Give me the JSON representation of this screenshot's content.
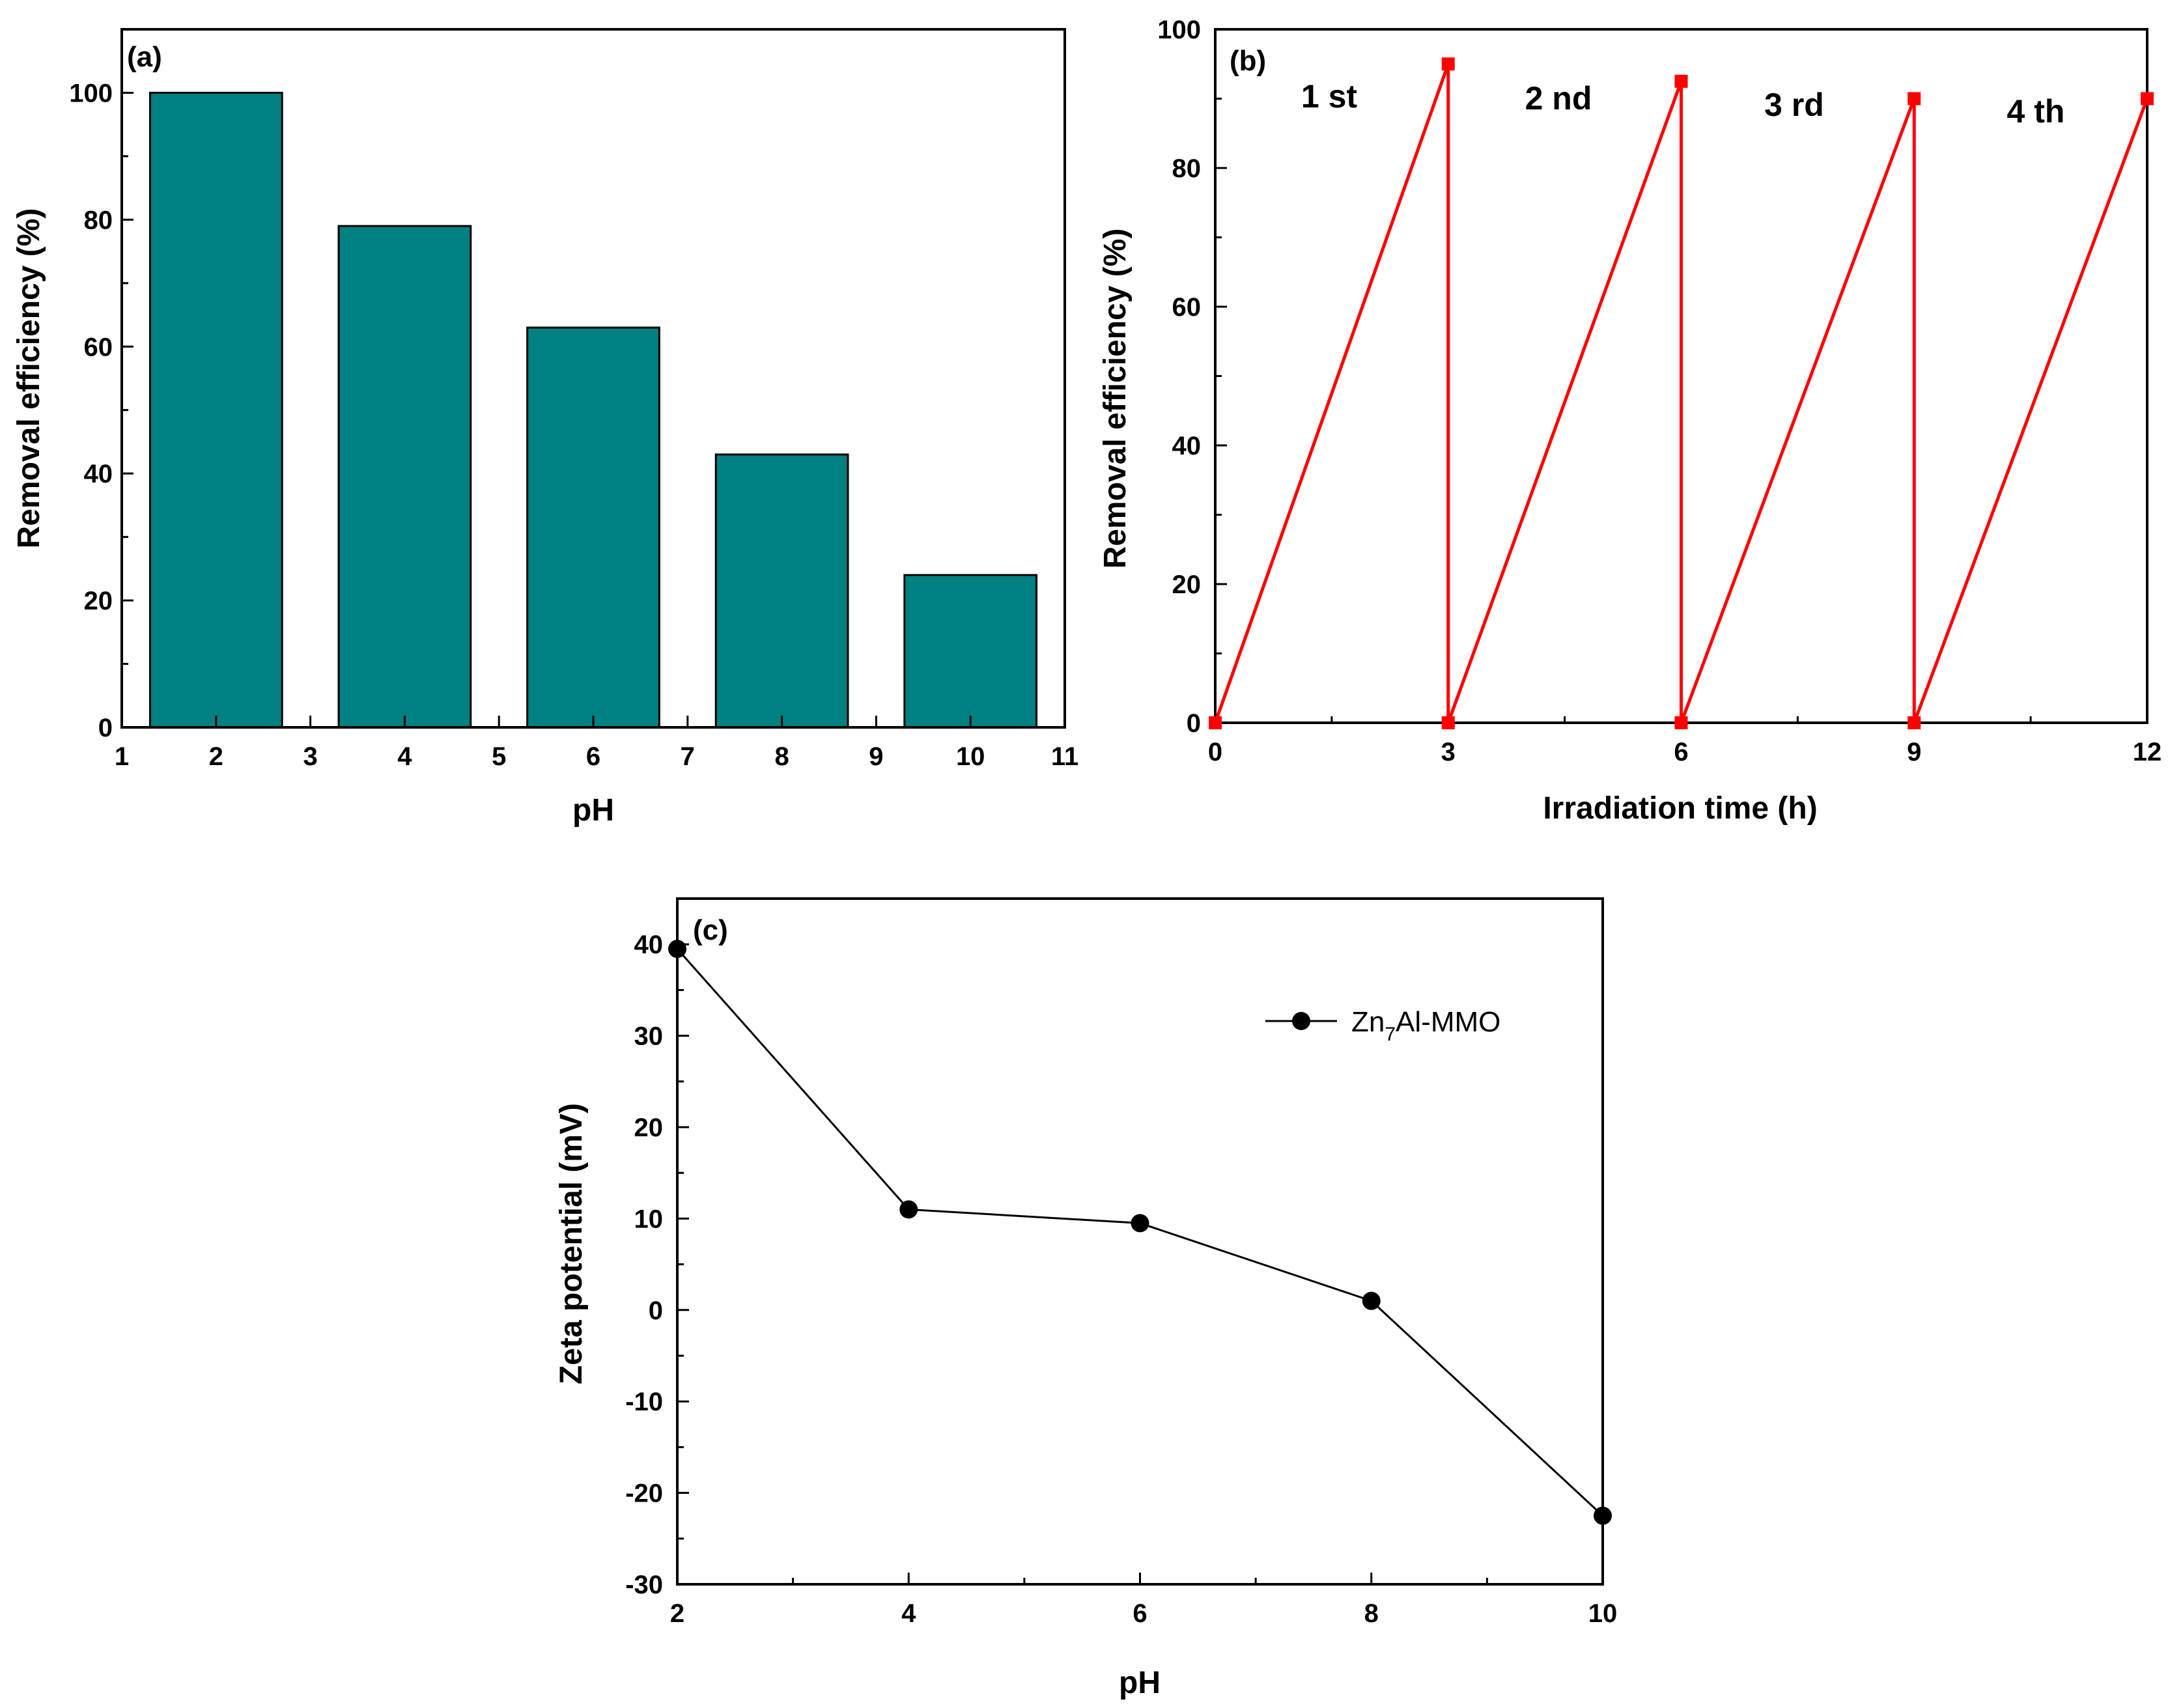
{
  "colors": {
    "bar": "#008080",
    "line_b": "#ff0000",
    "line_c": "#000000"
  },
  "chart_data": [
    {
      "panel": "(a)",
      "type": "bar",
      "xlabel": "pH",
      "ylabel": "Removal efficiency (%)",
      "categories": [
        2,
        4,
        6,
        8,
        10
      ],
      "values": [
        100,
        79,
        63,
        43,
        24
      ],
      "xlim": [
        1,
        11
      ],
      "ylim": [
        0,
        110
      ],
      "xticks": [
        "1",
        "2",
        "3",
        "4",
        "5",
        "6",
        "7",
        "8",
        "9",
        "10",
        "11"
      ],
      "yticks": [
        "0",
        "20",
        "40",
        "60",
        "80",
        "100"
      ]
    },
    {
      "panel": "(b)",
      "type": "line",
      "xlabel": "Irradiation time (h)",
      "ylabel": "Removal efficiency (%)",
      "xlim": [
        0,
        12
      ],
      "ylim": [
        0,
        100
      ],
      "xticks": [
        "0",
        "3",
        "6",
        "9",
        "12"
      ],
      "yticks": [
        "0",
        "20",
        "40",
        "60",
        "80",
        "100"
      ],
      "cycle_labels": [
        "1 st",
        "2 nd",
        "3 rd",
        "4 th"
      ],
      "series": [
        {
          "name": "Removal efficiency",
          "x": [
            0,
            3,
            3,
            6,
            6,
            9,
            9,
            12
          ],
          "y": [
            0,
            95,
            0,
            92.5,
            0,
            90,
            0,
            90
          ]
        }
      ]
    },
    {
      "panel": "(c)",
      "type": "line",
      "xlabel": "pH",
      "ylabel": "Zeta potential (mV)",
      "xlim": [
        2,
        10
      ],
      "ylim": [
        -30,
        45
      ],
      "xticks": [
        "2",
        "4",
        "6",
        "8",
        "10"
      ],
      "yticks": [
        "-30",
        "-20",
        "-10",
        "0",
        "10",
        "20",
        "30",
        "40"
      ],
      "legend": {
        "base": "Zn",
        "sub": "7",
        "rest": "Al-MMO",
        "placement": "top-right"
      },
      "series": [
        {
          "name": "Zn7Al-MMO",
          "x": [
            2,
            4,
            6,
            8,
            10
          ],
          "y": [
            39.5,
            11,
            9.5,
            1,
            -22.5
          ]
        }
      ]
    }
  ]
}
